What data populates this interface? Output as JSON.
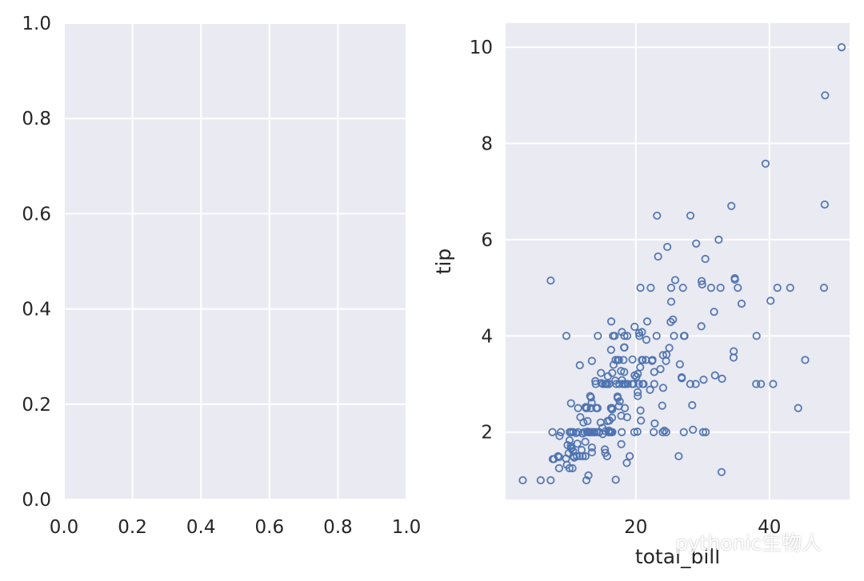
{
  "watermark": {
    "text": "pythonic生物人",
    "icon": "wechat-icon"
  },
  "colors": {
    "background": "#eaeaf2",
    "grid": "#ffffff",
    "marker": "#4c72b0",
    "text": "#262626"
  },
  "chart_data": [
    {
      "type": "scatter",
      "title": "",
      "xlabel": "",
      "ylabel": "",
      "xlim": [
        0,
        1
      ],
      "ylim": [
        0,
        1
      ],
      "x_ticks": [
        "0.0",
        "0.2",
        "0.4",
        "0.6",
        "0.8",
        "1.0"
      ],
      "y_ticks": [
        "0.0",
        "0.2",
        "0.4",
        "0.6",
        "0.8",
        "1.0"
      ],
      "grid": true,
      "series": []
    },
    {
      "type": "scatter",
      "title": "",
      "xlabel": "total_bill",
      "ylabel": "tip",
      "xlim": [
        0.5,
        52
      ],
      "ylim": [
        0.6,
        10.5
      ],
      "x_ticks": [
        "20",
        "40"
      ],
      "y_ticks": [
        "2",
        "4",
        "6",
        "8",
        "10"
      ],
      "grid": true,
      "marker": "hollow-circle",
      "series": [
        {
          "points": [
            [
              16.99,
              1.01
            ],
            [
              10.34,
              1.66
            ],
            [
              21.01,
              3.5
            ],
            [
              23.68,
              3.31
            ],
            [
              24.59,
              3.61
            ],
            [
              25.29,
              4.71
            ],
            [
              8.77,
              2.0
            ],
            [
              26.88,
              3.12
            ],
            [
              15.04,
              1.96
            ],
            [
              14.78,
              3.23
            ],
            [
              10.27,
              1.71
            ],
            [
              35.26,
              5.0
            ],
            [
              15.42,
              1.57
            ],
            [
              18.43,
              3.0
            ],
            [
              14.83,
              3.02
            ],
            [
              21.58,
              3.92
            ],
            [
              10.33,
              1.67
            ],
            [
              16.29,
              3.71
            ],
            [
              16.97,
              3.5
            ],
            [
              20.65,
              3.35
            ],
            [
              17.92,
              4.08
            ],
            [
              20.29,
              2.75
            ],
            [
              15.77,
              2.23
            ],
            [
              39.42,
              7.58
            ],
            [
              19.82,
              3.18
            ],
            [
              17.81,
              2.34
            ],
            [
              13.37,
              2.0
            ],
            [
              12.69,
              2.0
            ],
            [
              21.7,
              4.3
            ],
            [
              19.65,
              3.0
            ],
            [
              9.55,
              1.45
            ],
            [
              18.35,
              2.5
            ],
            [
              15.06,
              3.0
            ],
            [
              20.69,
              2.45
            ],
            [
              17.78,
              3.27
            ],
            [
              24.06,
              3.6
            ],
            [
              16.31,
              2.0
            ],
            [
              16.93,
              3.07
            ],
            [
              18.69,
              2.31
            ],
            [
              31.27,
              5.0
            ],
            [
              16.04,
              2.24
            ],
            [
              17.46,
              2.54
            ],
            [
              13.94,
              3.06
            ],
            [
              9.68,
              1.32
            ],
            [
              30.4,
              5.6
            ],
            [
              18.29,
              3.0
            ],
            [
              22.23,
              5.0
            ],
            [
              32.4,
              6.0
            ],
            [
              28.55,
              2.05
            ],
            [
              18.04,
              3.0
            ],
            [
              12.54,
              2.5
            ],
            [
              10.29,
              2.6
            ],
            [
              34.81,
              5.2
            ],
            [
              9.94,
              1.56
            ],
            [
              25.56,
              4.34
            ],
            [
              19.49,
              3.51
            ],
            [
              38.01,
              3.0
            ],
            [
              26.41,
              1.5
            ],
            [
              11.24,
              1.76
            ],
            [
              48.27,
              6.73
            ],
            [
              20.29,
              3.21
            ],
            [
              13.81,
              2.0
            ],
            [
              11.02,
              1.98
            ],
            [
              18.29,
              3.76
            ],
            [
              17.59,
              2.64
            ],
            [
              20.08,
              3.15
            ],
            [
              16.45,
              2.47
            ],
            [
              3.07,
              1.0
            ],
            [
              20.23,
              2.01
            ],
            [
              15.01,
              2.09
            ],
            [
              12.02,
              1.97
            ],
            [
              17.07,
              3.0
            ],
            [
              26.86,
              3.14
            ],
            [
              25.28,
              5.0
            ],
            [
              14.73,
              2.2
            ],
            [
              10.51,
              1.25
            ],
            [
              17.92,
              3.08
            ],
            [
              27.2,
              4.0
            ],
            [
              22.76,
              3.0
            ],
            [
              17.29,
              2.71
            ],
            [
              19.44,
              3.0
            ],
            [
              16.66,
              3.4
            ],
            [
              10.07,
              1.83
            ],
            [
              32.68,
              5.0
            ],
            [
              15.98,
              2.03
            ],
            [
              34.83,
              5.17
            ],
            [
              13.03,
              2.0
            ],
            [
              18.28,
              4.0
            ],
            [
              24.71,
              5.85
            ],
            [
              21.16,
              3.0
            ],
            [
              28.97,
              3.0
            ],
            [
              22.49,
              3.5
            ],
            [
              5.75,
              1.0
            ],
            [
              16.32,
              4.3
            ],
            [
              22.75,
              3.25
            ],
            [
              40.17,
              4.73
            ],
            [
              27.28,
              4.0
            ],
            [
              12.03,
              1.5
            ],
            [
              21.01,
              3.0
            ],
            [
              12.46,
              1.5
            ],
            [
              11.35,
              2.5
            ],
            [
              15.38,
              3.0
            ],
            [
              44.3,
              2.5
            ],
            [
              22.42,
              3.48
            ],
            [
              20.92,
              4.08
            ],
            [
              15.36,
              1.64
            ],
            [
              20.49,
              4.06
            ],
            [
              25.21,
              4.29
            ],
            [
              18.24,
              3.76
            ],
            [
              14.31,
              4.0
            ],
            [
              14.0,
              3.0
            ],
            [
              7.25,
              1.0
            ],
            [
              38.07,
              4.0
            ],
            [
              23.95,
              2.55
            ],
            [
              25.71,
              4.0
            ],
            [
              17.31,
              3.5
            ],
            [
              29.93,
              5.07
            ],
            [
              10.65,
              1.5
            ],
            [
              12.43,
              1.8
            ],
            [
              24.08,
              2.92
            ],
            [
              11.69,
              2.31
            ],
            [
              13.42,
              1.68
            ],
            [
              14.26,
              2.5
            ],
            [
              15.95,
              2.0
            ],
            [
              12.48,
              2.52
            ],
            [
              29.8,
              4.2
            ],
            [
              8.52,
              1.48
            ],
            [
              14.52,
              2.0
            ],
            [
              11.38,
              2.0
            ],
            [
              22.82,
              2.18
            ],
            [
              19.08,
              1.5
            ],
            [
              20.27,
              2.83
            ],
            [
              11.17,
              1.5
            ],
            [
              12.26,
              2.0
            ],
            [
              18.26,
              3.25
            ],
            [
              8.51,
              1.25
            ],
            [
              10.33,
              2.0
            ],
            [
              14.15,
              2.0
            ],
            [
              16.0,
              2.0
            ],
            [
              13.16,
              2.75
            ],
            [
              17.47,
              3.5
            ],
            [
              34.3,
              6.7
            ],
            [
              41.19,
              5.0
            ],
            [
              27.05,
              5.0
            ],
            [
              16.43,
              2.3
            ],
            [
              8.35,
              1.5
            ],
            [
              18.64,
              1.36
            ],
            [
              11.87,
              1.63
            ],
            [
              9.78,
              1.73
            ],
            [
              7.51,
              2.0
            ],
            [
              14.07,
              2.5
            ],
            [
              13.13,
              2.0
            ],
            [
              17.26,
              2.74
            ],
            [
              24.55,
              2.0
            ],
            [
              19.77,
              2.0
            ],
            [
              29.85,
              5.14
            ],
            [
              48.17,
              5.0
            ],
            [
              25.0,
              3.75
            ],
            [
              13.39,
              2.61
            ],
            [
              16.49,
              2.0
            ],
            [
              21.5,
              3.5
            ],
            [
              12.66,
              2.5
            ],
            [
              16.21,
              2.0
            ],
            [
              13.81,
              2.0
            ],
            [
              17.51,
              3.0
            ],
            [
              24.52,
              3.48
            ],
            [
              20.76,
              2.24
            ],
            [
              31.71,
              4.5
            ],
            [
              10.59,
              1.61
            ],
            [
              10.63,
              2.0
            ],
            [
              50.81,
              10.0
            ],
            [
              15.81,
              3.16
            ],
            [
              7.25,
              5.15
            ],
            [
              31.85,
              3.18
            ],
            [
              16.82,
              4.0
            ],
            [
              32.9,
              3.11
            ],
            [
              17.89,
              2.0
            ],
            [
              14.48,
              2.0
            ],
            [
              9.6,
              4.0
            ],
            [
              34.63,
              3.55
            ],
            [
              34.65,
              3.68
            ],
            [
              23.33,
              5.65
            ],
            [
              45.35,
              3.5
            ],
            [
              23.17,
              6.5
            ],
            [
              40.55,
              3.0
            ],
            [
              20.69,
              5.0
            ],
            [
              20.9,
              3.5
            ],
            [
              30.46,
              2.0
            ],
            [
              18.15,
              3.5
            ],
            [
              23.1,
              4.0
            ],
            [
              15.69,
              1.5
            ],
            [
              19.81,
              4.19
            ],
            [
              28.44,
              2.56
            ],
            [
              15.48,
              2.02
            ],
            [
              16.58,
              4.0
            ],
            [
              7.56,
              1.44
            ],
            [
              10.34,
              2.0
            ],
            [
              43.11,
              5.0
            ],
            [
              13.0,
              2.0
            ],
            [
              13.51,
              2.0
            ],
            [
              18.71,
              4.0
            ],
            [
              12.74,
              2.01
            ],
            [
              13.0,
              2.0
            ],
            [
              16.4,
              2.5
            ],
            [
              20.53,
              4.0
            ],
            [
              16.47,
              3.23
            ],
            [
              26.59,
              3.41
            ],
            [
              38.73,
              3.0
            ],
            [
              24.27,
              2.03
            ],
            [
              12.76,
              2.23
            ],
            [
              30.06,
              2.0
            ],
            [
              25.89,
              5.16
            ],
            [
              48.33,
              9.0
            ],
            [
              13.27,
              2.5
            ],
            [
              28.17,
              6.5
            ],
            [
              12.9,
              1.1
            ],
            [
              28.15,
              3.0
            ],
            [
              11.59,
              1.5
            ],
            [
              7.74,
              1.44
            ],
            [
              30.14,
              3.09
            ],
            [
              12.16,
              2.2
            ],
            [
              13.42,
              3.48
            ],
            [
              8.58,
              1.92
            ],
            [
              15.98,
              3.0
            ],
            [
              13.42,
              1.58
            ],
            [
              16.27,
              2.5
            ],
            [
              10.09,
              2.0
            ],
            [
              20.45,
              3.0
            ],
            [
              13.28,
              2.72
            ],
            [
              22.12,
              2.88
            ],
            [
              24.01,
              2.0
            ],
            [
              15.69,
              3.0
            ],
            [
              11.61,
              3.39
            ],
            [
              10.77,
              1.47
            ],
            [
              15.53,
              3.0
            ],
            [
              10.07,
              1.25
            ],
            [
              12.6,
              1.0
            ],
            [
              32.83,
              1.17
            ],
            [
              35.83,
              4.67
            ],
            [
              29.03,
              5.92
            ],
            [
              27.18,
              2.0
            ],
            [
              22.67,
              2.0
            ],
            [
              17.82,
              1.75
            ],
            [
              18.78,
              3.0
            ]
          ]
        }
      ]
    }
  ]
}
